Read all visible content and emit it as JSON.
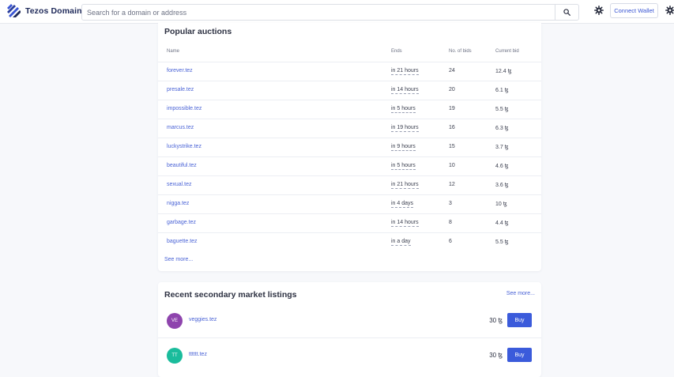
{
  "header": {
    "brand": "Tezos Domains",
    "search_placeholder": "Search for a domain or address",
    "connect_label": "Connect Wallet"
  },
  "auctions": {
    "title": "Popular auctions",
    "columns": {
      "name": "Name",
      "ends": "Ends",
      "bids": "No. of bids",
      "bid": "Current bid"
    },
    "rows": [
      {
        "name": "forever.tez",
        "ends": "in 21 hours",
        "bids": "24",
        "bid": "12.4 ꜩ"
      },
      {
        "name": "presale.tez",
        "ends": "in 14 hours",
        "bids": "20",
        "bid": "6.1 ꜩ"
      },
      {
        "name": "impossible.tez",
        "ends": "in 5 hours",
        "bids": "19",
        "bid": "5.5 ꜩ"
      },
      {
        "name": "marcus.tez",
        "ends": "in 19 hours",
        "bids": "16",
        "bid": "6.3 ꜩ"
      },
      {
        "name": "luckystrike.tez",
        "ends": "in 9 hours",
        "bids": "15",
        "bid": "3.7 ꜩ"
      },
      {
        "name": "beautiful.tez",
        "ends": "in 5 hours",
        "bids": "10",
        "bid": "4.6 ꜩ"
      },
      {
        "name": "sexual.tez",
        "ends": "in 21 hours",
        "bids": "12",
        "bid": "3.6 ꜩ"
      },
      {
        "name": "nigga.tez",
        "ends": "in 4 days",
        "bids": "3",
        "bid": "10 ꜩ"
      },
      {
        "name": "garbage.tez",
        "ends": "in 14 hours",
        "bids": "8",
        "bid": "4.4 ꜩ"
      },
      {
        "name": "baguette.tez",
        "ends": "in a day",
        "bids": "6",
        "bid": "5.5 ꜩ"
      }
    ],
    "see_more": "See more..."
  },
  "listings": {
    "title": "Recent secondary market listings",
    "see_more": "See more...",
    "items": [
      {
        "initials": "VE",
        "name": "veggies.tez",
        "price": "30 ꜩ",
        "buy": "Buy",
        "avatar_color": "#8e44ad"
      },
      {
        "initials": "TT",
        "name": "tttttt.tez",
        "price": "30 ꜩ",
        "buy": "Buy",
        "avatar_color": "#1abc9c"
      }
    ]
  },
  "colors": {
    "accent": "#3b5bdb",
    "link": "#4a63d6",
    "brand_dark": "#1f2a5a"
  }
}
